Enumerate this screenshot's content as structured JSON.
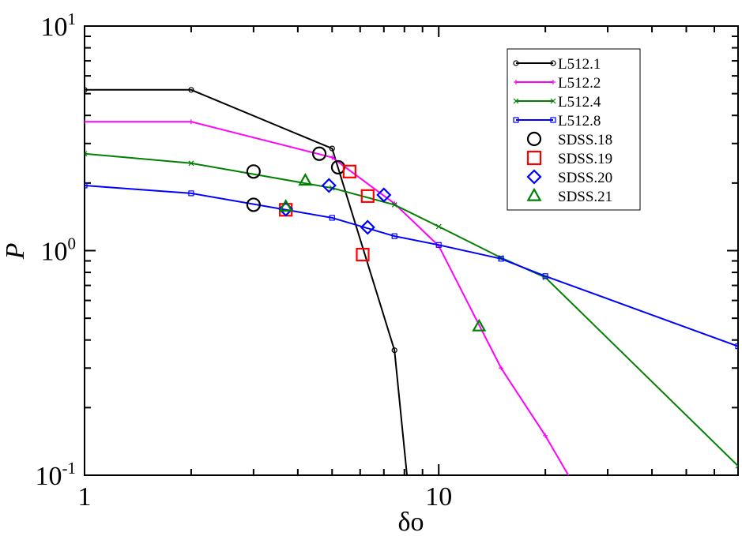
{
  "chart_data": {
    "type": "line",
    "title": "",
    "xlabel": "δo",
    "ylabel": "P",
    "xscale": "log",
    "yscale": "log",
    "xlim": [
      1,
      70
    ],
    "ylim": [
      0.1,
      10
    ],
    "x_ticks": [
      {
        "value": 1,
        "label": "1",
        "sup": ""
      },
      {
        "value": 10,
        "label": "10",
        "sup": ""
      }
    ],
    "y_ticks": [
      {
        "value": 0.1,
        "label": "10",
        "sup": "-1"
      },
      {
        "value": 1,
        "label": "10",
        "sup": "0"
      },
      {
        "value": 10,
        "label": "10",
        "sup": "1"
      }
    ],
    "grid": false,
    "legend_position": "top-right",
    "series": [
      {
        "name": "L512.1",
        "kind": "line",
        "color": "#000000",
        "marker": "circle",
        "points": [
          [
            1,
            5.2
          ],
          [
            2,
            5.2
          ],
          [
            5,
            2.85
          ],
          [
            7.5,
            0.36
          ],
          [
            8.5,
            0.05
          ]
        ]
      },
      {
        "name": "L512.2",
        "kind": "line",
        "color": "#ff00ff",
        "marker": "plus",
        "points": [
          [
            1,
            3.75
          ],
          [
            2,
            3.75
          ],
          [
            5,
            2.6
          ],
          [
            7.5,
            1.62
          ],
          [
            10,
            1.05
          ],
          [
            15,
            0.3
          ],
          [
            20,
            0.15
          ],
          [
            30,
            0.05
          ]
        ]
      },
      {
        "name": "L512.4",
        "kind": "line",
        "color": "#008000",
        "marker": "x",
        "points": [
          [
            1,
            2.7
          ],
          [
            2,
            2.45
          ],
          [
            5,
            1.9
          ],
          [
            7.5,
            1.6
          ],
          [
            10,
            1.28
          ],
          [
            15,
            0.93
          ],
          [
            20,
            0.76
          ],
          [
            70,
            0.11
          ]
        ]
      },
      {
        "name": "L512.8",
        "kind": "line",
        "color": "#0000ff",
        "marker": "square",
        "points": [
          [
            1,
            1.95
          ],
          [
            2,
            1.8
          ],
          [
            5,
            1.4
          ],
          [
            7.5,
            1.16
          ],
          [
            10,
            1.06
          ],
          [
            15,
            0.92
          ],
          [
            20,
            0.77
          ],
          [
            70,
            0.375
          ]
        ]
      },
      {
        "name": "SDSS.18",
        "kind": "scatter",
        "color": "#000000",
        "marker": "circle",
        "points": [
          [
            3.0,
            2.25
          ],
          [
            3.0,
            1.6
          ],
          [
            4.6,
            2.7
          ],
          [
            5.2,
            2.35
          ]
        ]
      },
      {
        "name": "SDSS.19",
        "kind": "scatter",
        "color": "#ff0000",
        "marker": "square",
        "points": [
          [
            3.7,
            1.52
          ],
          [
            5.6,
            2.25
          ],
          [
            6.3,
            1.75
          ],
          [
            6.1,
            0.96
          ]
        ]
      },
      {
        "name": "SDSS.20",
        "kind": "scatter",
        "color": "#0000ff",
        "marker": "diamond",
        "points": [
          [
            3.7,
            1.53
          ],
          [
            4.9,
            1.95
          ],
          [
            6.3,
            1.27
          ],
          [
            7.0,
            1.77
          ]
        ]
      },
      {
        "name": "SDSS.21",
        "kind": "scatter",
        "color": "#008000",
        "marker": "triangle",
        "points": [
          [
            3.7,
            1.57
          ],
          [
            4.2,
            2.05
          ],
          [
            13.0,
            0.46
          ]
        ]
      }
    ]
  }
}
